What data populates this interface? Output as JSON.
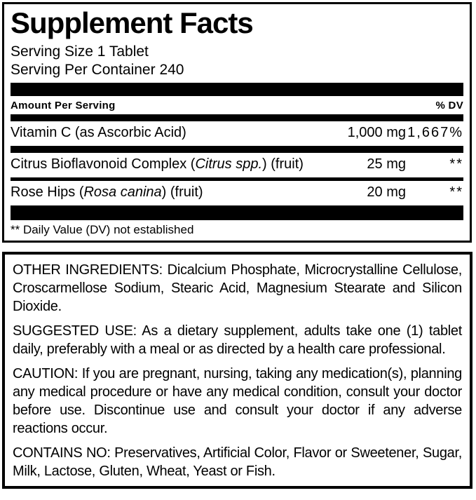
{
  "colors": {
    "text": "#000000",
    "background": "#ffffff",
    "rule": "#000000"
  },
  "panel": {
    "title": "Supplement Facts",
    "serving_size": "Serving Size 1 Tablet",
    "servings_per_container": "Serving Per Container 240",
    "header": {
      "amount_label": "Amount Per Serving",
      "dv_label": "% DV"
    },
    "rows": [
      {
        "name_pre": "Vitamin C (as Ascorbic Acid)",
        "name_italic": "",
        "name_post": "",
        "amount": "1,000 mg",
        "dv": "1,667%"
      },
      {
        "name_pre": "Citrus Bioflavonoid Complex (",
        "name_italic": "Citrus spp.",
        "name_post": ") (fruit)",
        "amount": "25 mg",
        "dv": "**"
      },
      {
        "name_pre": "Rose Hips (",
        "name_italic": "Rosa canina",
        "name_post": ") (fruit)",
        "amount": "20 mg",
        "dv": "**"
      }
    ],
    "footnote": "** Daily Value (DV) not established"
  },
  "info": {
    "paragraphs": [
      {
        "label": "OTHER INGREDIENTS:",
        "body": "Dicalcium Phosphate, Microcrystalline Cellulose, Croscarmellose Sodium, Stearic Acid, Magnesium Stearate and Silicon Dioxide."
      },
      {
        "label": "SUGGESTED USE:",
        "body": "As a dietary supplement, adults take one (1) tablet daily, preferably with a meal or as directed by a health care professional."
      },
      {
        "label": "CAUTION:",
        "body": "If you are pregnant, nursing, taking any medication(s), planning any medical procedure or have any medical condition, consult your doctor before use. Discontinue use and consult your doctor if any adverse reactions occur."
      },
      {
        "label": "CONTAINS NO:",
        "body": "Preservatives, Artificial Color, Flavor or Sweetener, Sugar, Milk, Lactose, Gluten, Wheat, Yeast or Fish."
      }
    ]
  }
}
